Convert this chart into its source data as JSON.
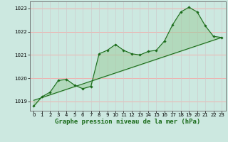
{
  "title": "Graphe pression niveau de la mer (hPa)",
  "background_color": "#cce8e0",
  "grid_color_h": "#ff9999",
  "grid_color_v": "#cccccc",
  "line_color": "#1a6b1a",
  "marker_color": "#1a6b1a",
  "fill_color": "#99cc99",
  "xlim": [
    -0.5,
    23.5
  ],
  "ylim": [
    1018.6,
    1023.3
  ],
  "yticks": [
    1019,
    1020,
    1021,
    1022,
    1023
  ],
  "xticks": [
    0,
    1,
    2,
    3,
    4,
    5,
    6,
    7,
    8,
    9,
    10,
    11,
    12,
    13,
    14,
    15,
    16,
    17,
    18,
    19,
    20,
    21,
    22,
    23
  ],
  "main_data": {
    "x": [
      0,
      1,
      2,
      3,
      4,
      5,
      6,
      7,
      8,
      9,
      10,
      11,
      12,
      13,
      14,
      15,
      16,
      17,
      18,
      19,
      20,
      21,
      22,
      23
    ],
    "y": [
      1018.8,
      1019.2,
      1019.4,
      1019.9,
      1019.95,
      1019.7,
      1019.55,
      1019.65,
      1021.05,
      1021.2,
      1021.45,
      1021.2,
      1021.05,
      1021.0,
      1021.15,
      1021.2,
      1021.6,
      1022.3,
      1022.85,
      1023.05,
      1022.85,
      1022.25,
      1021.8,
      1021.75
    ]
  },
  "trend_data": {
    "x": [
      0,
      23
    ],
    "y": [
      1019.05,
      1021.75
    ]
  },
  "label_fontsize": 6.5,
  "tick_fontsize": 5.0,
  "figure_width": 3.2,
  "figure_height": 2.0,
  "dpi": 100
}
